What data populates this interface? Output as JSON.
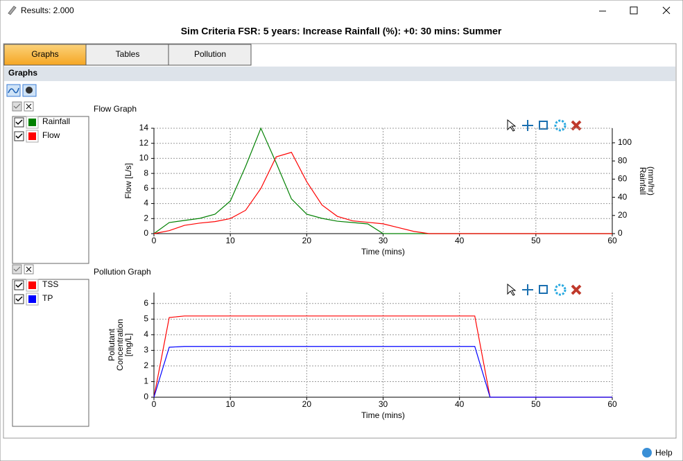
{
  "window": {
    "title": "Results: 2.000"
  },
  "header": "Sim Criteria FSR: 5 years: Increase Rainfall (%): +0: 30 mins: Summer",
  "tabs": [
    "Graphs",
    "Tables",
    "Pollution"
  ],
  "section": "Graphs",
  "help": "Help",
  "chart_data": [
    {
      "type": "line",
      "title": "Flow Graph",
      "xlabel": "Time (mins)",
      "ylabel": [
        "Flow [L/s]"
      ],
      "y2label": [
        "Rainfall",
        "(mm/hr)"
      ],
      "x": [
        0,
        2,
        4,
        6,
        8,
        10,
        12,
        14,
        16,
        18,
        20,
        22,
        24,
        26,
        28,
        30,
        32,
        34,
        36,
        60
      ],
      "series": [
        {
          "name": "Rainfall",
          "color": "#008000",
          "axis": "y2",
          "values": [
            0,
            12.2,
            14.5,
            16.8,
            21.4,
            35.9,
            74,
            116,
            77.9,
            38.2,
            21.4,
            16.8,
            13.7,
            12.2,
            10.7,
            0,
            0,
            0,
            0,
            0
          ]
        },
        {
          "name": "Flow",
          "color": "#ff0000",
          "values": [
            0,
            0.4,
            1.1,
            1.4,
            1.6,
            2.0,
            3.1,
            6.0,
            10.2,
            10.8,
            6.9,
            3.8,
            2.3,
            1.7,
            1.5,
            1.3,
            0.8,
            0.3,
            0,
            0
          ]
        }
      ],
      "xlim": [
        0,
        60
      ],
      "xticks": [
        0,
        10,
        20,
        30,
        40,
        50,
        60
      ],
      "ylim": [
        0,
        14
      ],
      "yticks": [
        0,
        2,
        4,
        6,
        8,
        10,
        12,
        14
      ],
      "y2lim": [
        0,
        116
      ],
      "y2ticks": [
        0,
        20,
        40,
        60,
        80,
        100
      ],
      "grid": true
    },
    {
      "type": "line",
      "title": "Pollution Graph",
      "xlabel": "Time (mins)",
      "ylabel": [
        "Pollutant",
        "Concentration",
        "[mg/L]"
      ],
      "x": [
        0,
        2,
        4,
        42,
        44,
        60
      ],
      "series": [
        {
          "name": "TSS",
          "color": "#ff0000",
          "values": [
            0,
            5.1,
            5.2,
            5.2,
            0,
            0
          ]
        },
        {
          "name": "TP",
          "color": "#0000ff",
          "values": [
            0,
            3.2,
            3.25,
            3.25,
            0,
            0
          ]
        }
      ],
      "xlim": [
        0,
        60
      ],
      "xticks": [
        0,
        10,
        20,
        30,
        40,
        50,
        60
      ],
      "ylim": [
        0,
        6.7
      ],
      "yticks": [
        0,
        1,
        2,
        3,
        4,
        5,
        6
      ],
      "grid": true
    }
  ]
}
